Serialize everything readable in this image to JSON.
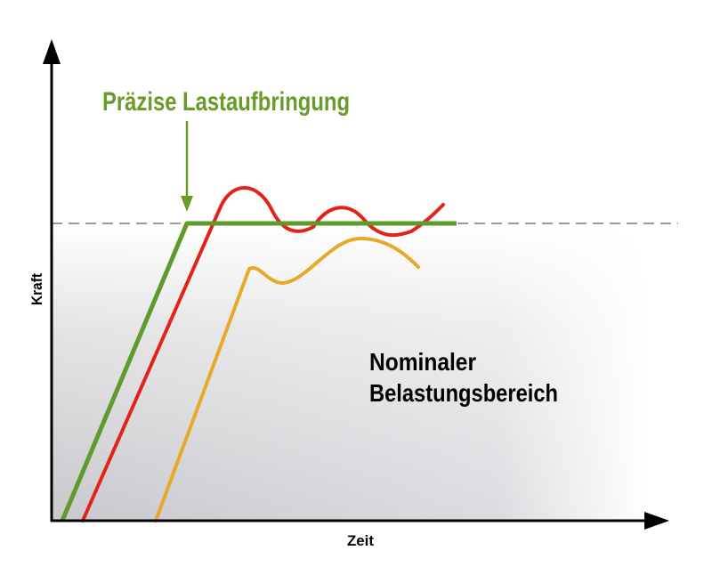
{
  "annotation": "Präzise Lastaufbringung",
  "region_label": {
    "line1": "Nominaler",
    "line2": "Belastungsbereich"
  },
  "axes": {
    "y_label": "Kraft",
    "x_label": "Zeit"
  }
}
